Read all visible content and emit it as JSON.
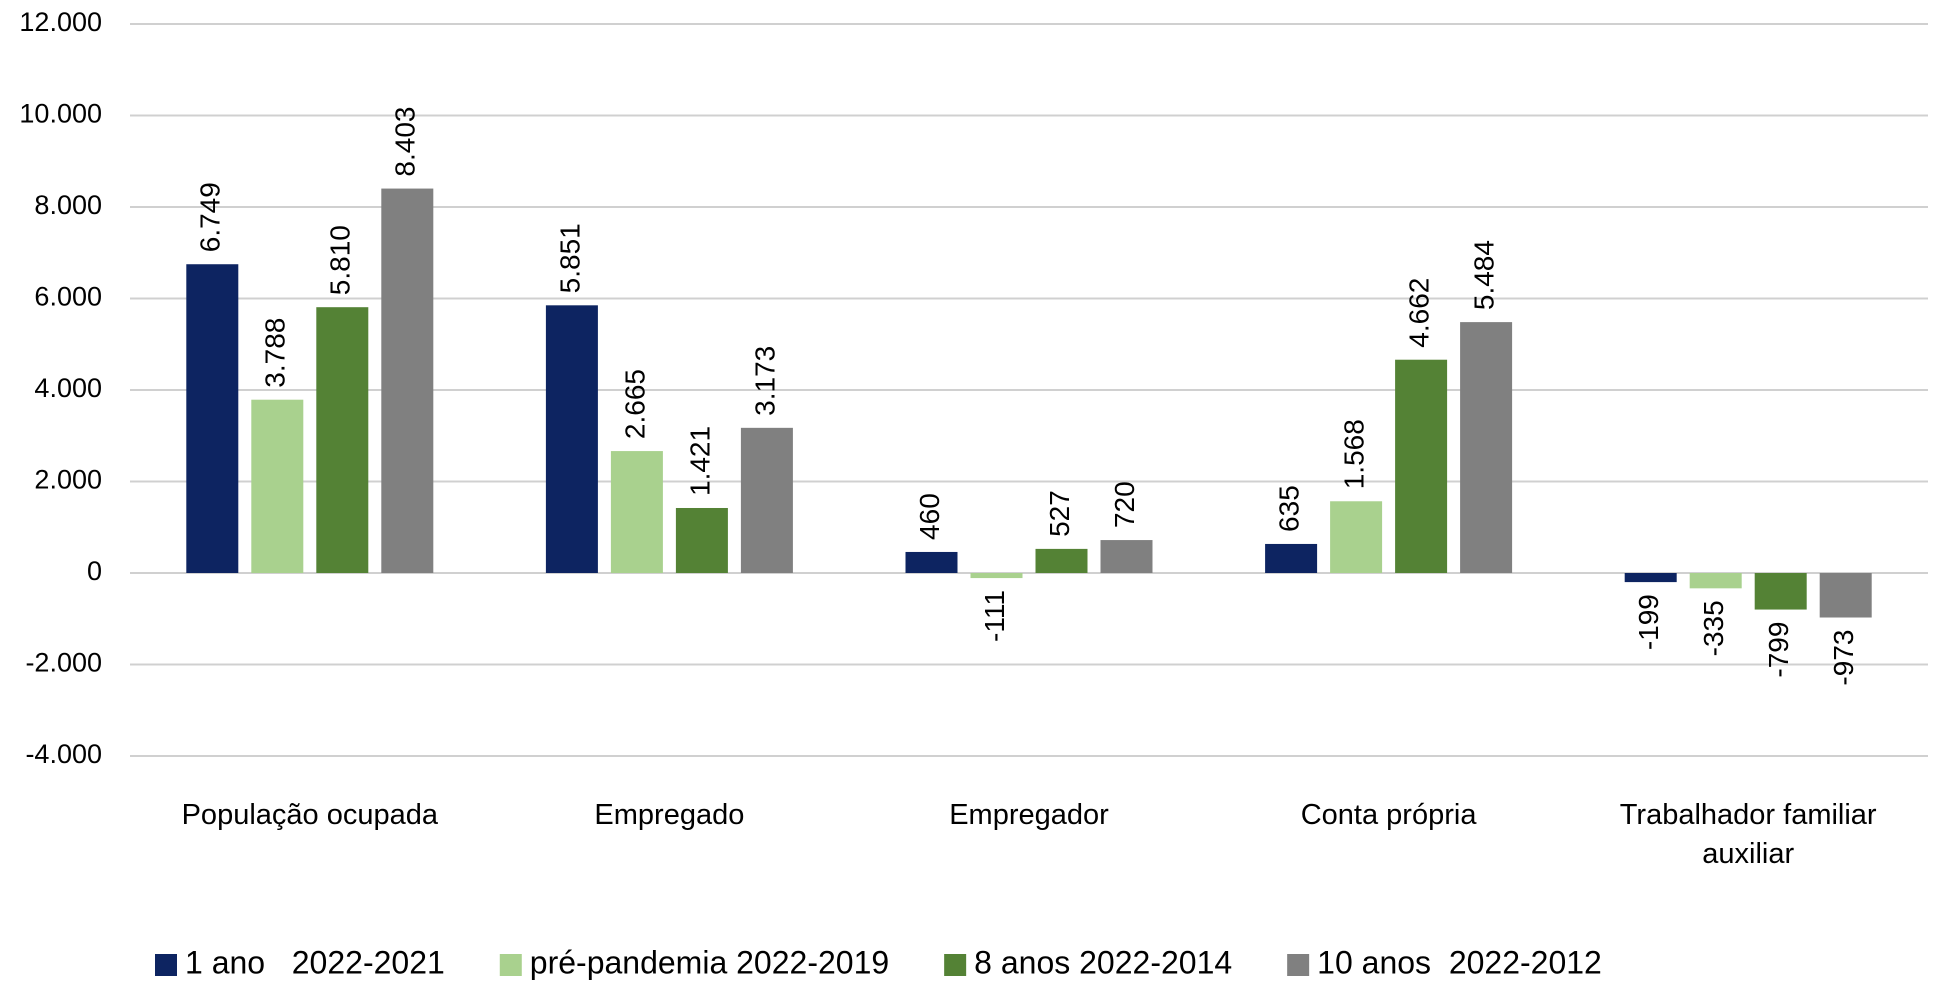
{
  "chart_data": {
    "type": "bar",
    "categories": [
      "População ocupada",
      "Empregado",
      "Empregador",
      "Conta própria",
      "Trabalhador familiar auxiliar"
    ],
    "series": [
      {
        "name": "1 ano   2022-2021",
        "color": "#0d2461",
        "values": [
          6749,
          5851,
          460,
          635,
          -199
        ],
        "value_labels": [
          "6.749",
          "5.851",
          "460",
          "635",
          "-199"
        ]
      },
      {
        "name": "pré-pandemia 2022-2019",
        "color": "#a9d18e",
        "values": [
          3788,
          2665,
          -111,
          1568,
          -335
        ],
        "value_labels": [
          "3.788",
          "2.665",
          "-111",
          "1.568",
          "-335"
        ]
      },
      {
        "name": "8 anos 2022-2014",
        "color": "#548235",
        "values": [
          5810,
          1421,
          527,
          4662,
          -799
        ],
        "value_labels": [
          "5.810",
          "1.421",
          "527",
          "4.662",
          "-799"
        ]
      },
      {
        "name": "10 anos  2022-2012",
        "color": "#808080",
        "values": [
          8403,
          3173,
          720,
          5484,
          -973
        ],
        "value_labels": [
          "8.403",
          "3.173",
          "720",
          "5.484",
          "-973"
        ]
      }
    ],
    "ylim": [
      -4000,
      12000
    ],
    "yticks": [
      {
        "value": -4000,
        "label": "-4.000"
      },
      {
        "value": -2000,
        "label": "-2.000"
      },
      0,
      {
        "value": 2000,
        "label": "2.000"
      },
      {
        "value": 4000,
        "label": "4.000"
      },
      {
        "value": 6000,
        "label": "6.000"
      },
      {
        "value": 8000,
        "label": "8.000"
      },
      {
        "value": 10000,
        "label": "10.000"
      },
      {
        "value": 12000,
        "label": "12.000"
      }
    ],
    "grid": true,
    "legend": "bottom"
  }
}
